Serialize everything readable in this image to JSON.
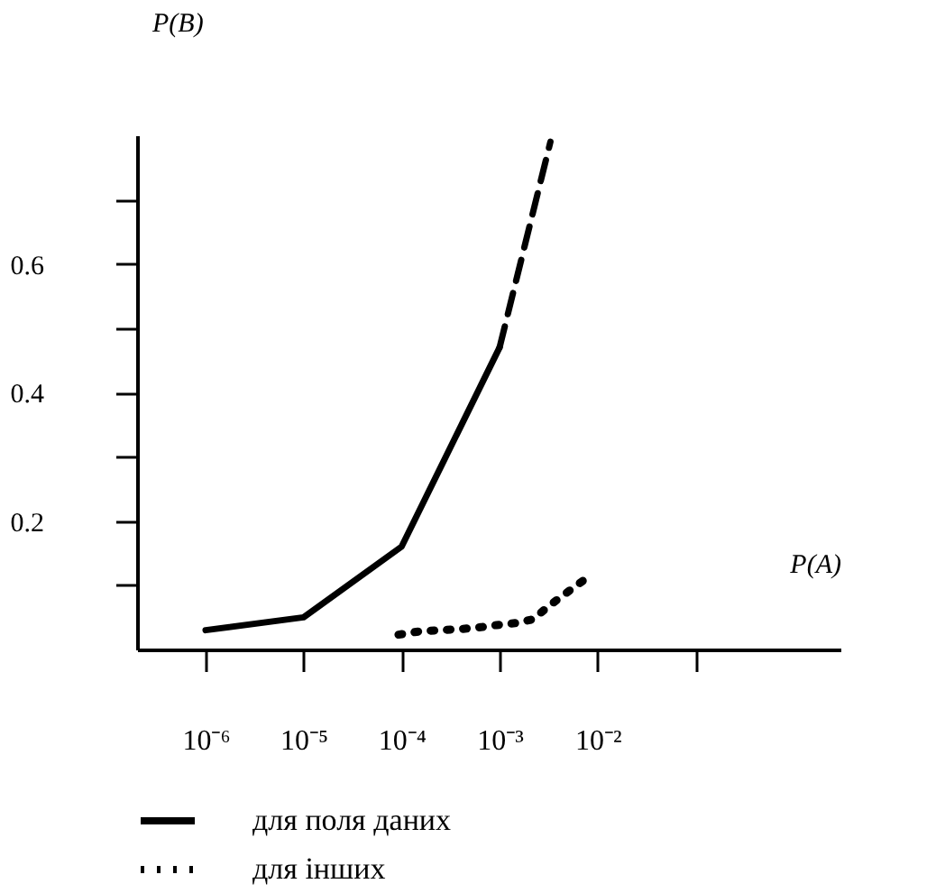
{
  "chart_data": {
    "type": "line",
    "xlabel": "P(A)",
    "ylabel": "P(B)",
    "log": "x",
    "xlim": [
      2e-07,
      3
    ],
    "xticks": [
      {
        "value": 1e-06,
        "label": "10⁻⁶"
      },
      {
        "value": 1e-05,
        "label": "10⁻⁵"
      },
      {
        "value": 0.0001,
        "label": "10⁻⁴"
      },
      {
        "value": 0.001,
        "label": "10⁻³"
      },
      {
        "value": 0.01,
        "label": "10⁻²"
      },
      {
        "value": 0.1,
        "label": null
      }
    ],
    "ylim": [
      0,
      0.8
    ],
    "yticks": [
      {
        "value": 0.1,
        "label": null
      },
      0.2,
      {
        "value": 0.3,
        "label": null
      },
      0.4,
      {
        "value": 0.5,
        "label": null
      },
      0.6,
      {
        "value": 0.7,
        "label": null
      }
    ],
    "grid": false,
    "legend": "bottom",
    "marker": "none",
    "series": [
      {
        "name": "для поля даних",
        "color": "#000000",
        "line_style": "solid",
        "x": [
          1e-06,
          1e-05,
          0.0001,
          0.001
        ],
        "values": [
          0.03,
          0.05,
          0.16,
          0.47
        ]
      },
      {
        "color": "#000000",
        "line_style": "dashed",
        "x": [
          0.001,
          0.0033
        ],
        "values": [
          0.47,
          0.79
        ]
      },
      {
        "name": "для інших",
        "color": "#000000",
        "line_style": "dotted",
        "x": [
          9.3e-05,
          0.00015,
          0.00024,
          0.00042,
          0.00067,
          0.00093,
          0.00145,
          0.0022,
          0.0032,
          0.0048,
          0.0071
        ],
        "values": [
          0.023,
          0.028,
          0.03,
          0.032,
          0.035,
          0.038,
          0.041,
          0.047,
          0.068,
          0.088,
          0.107
        ]
      }
    ]
  }
}
